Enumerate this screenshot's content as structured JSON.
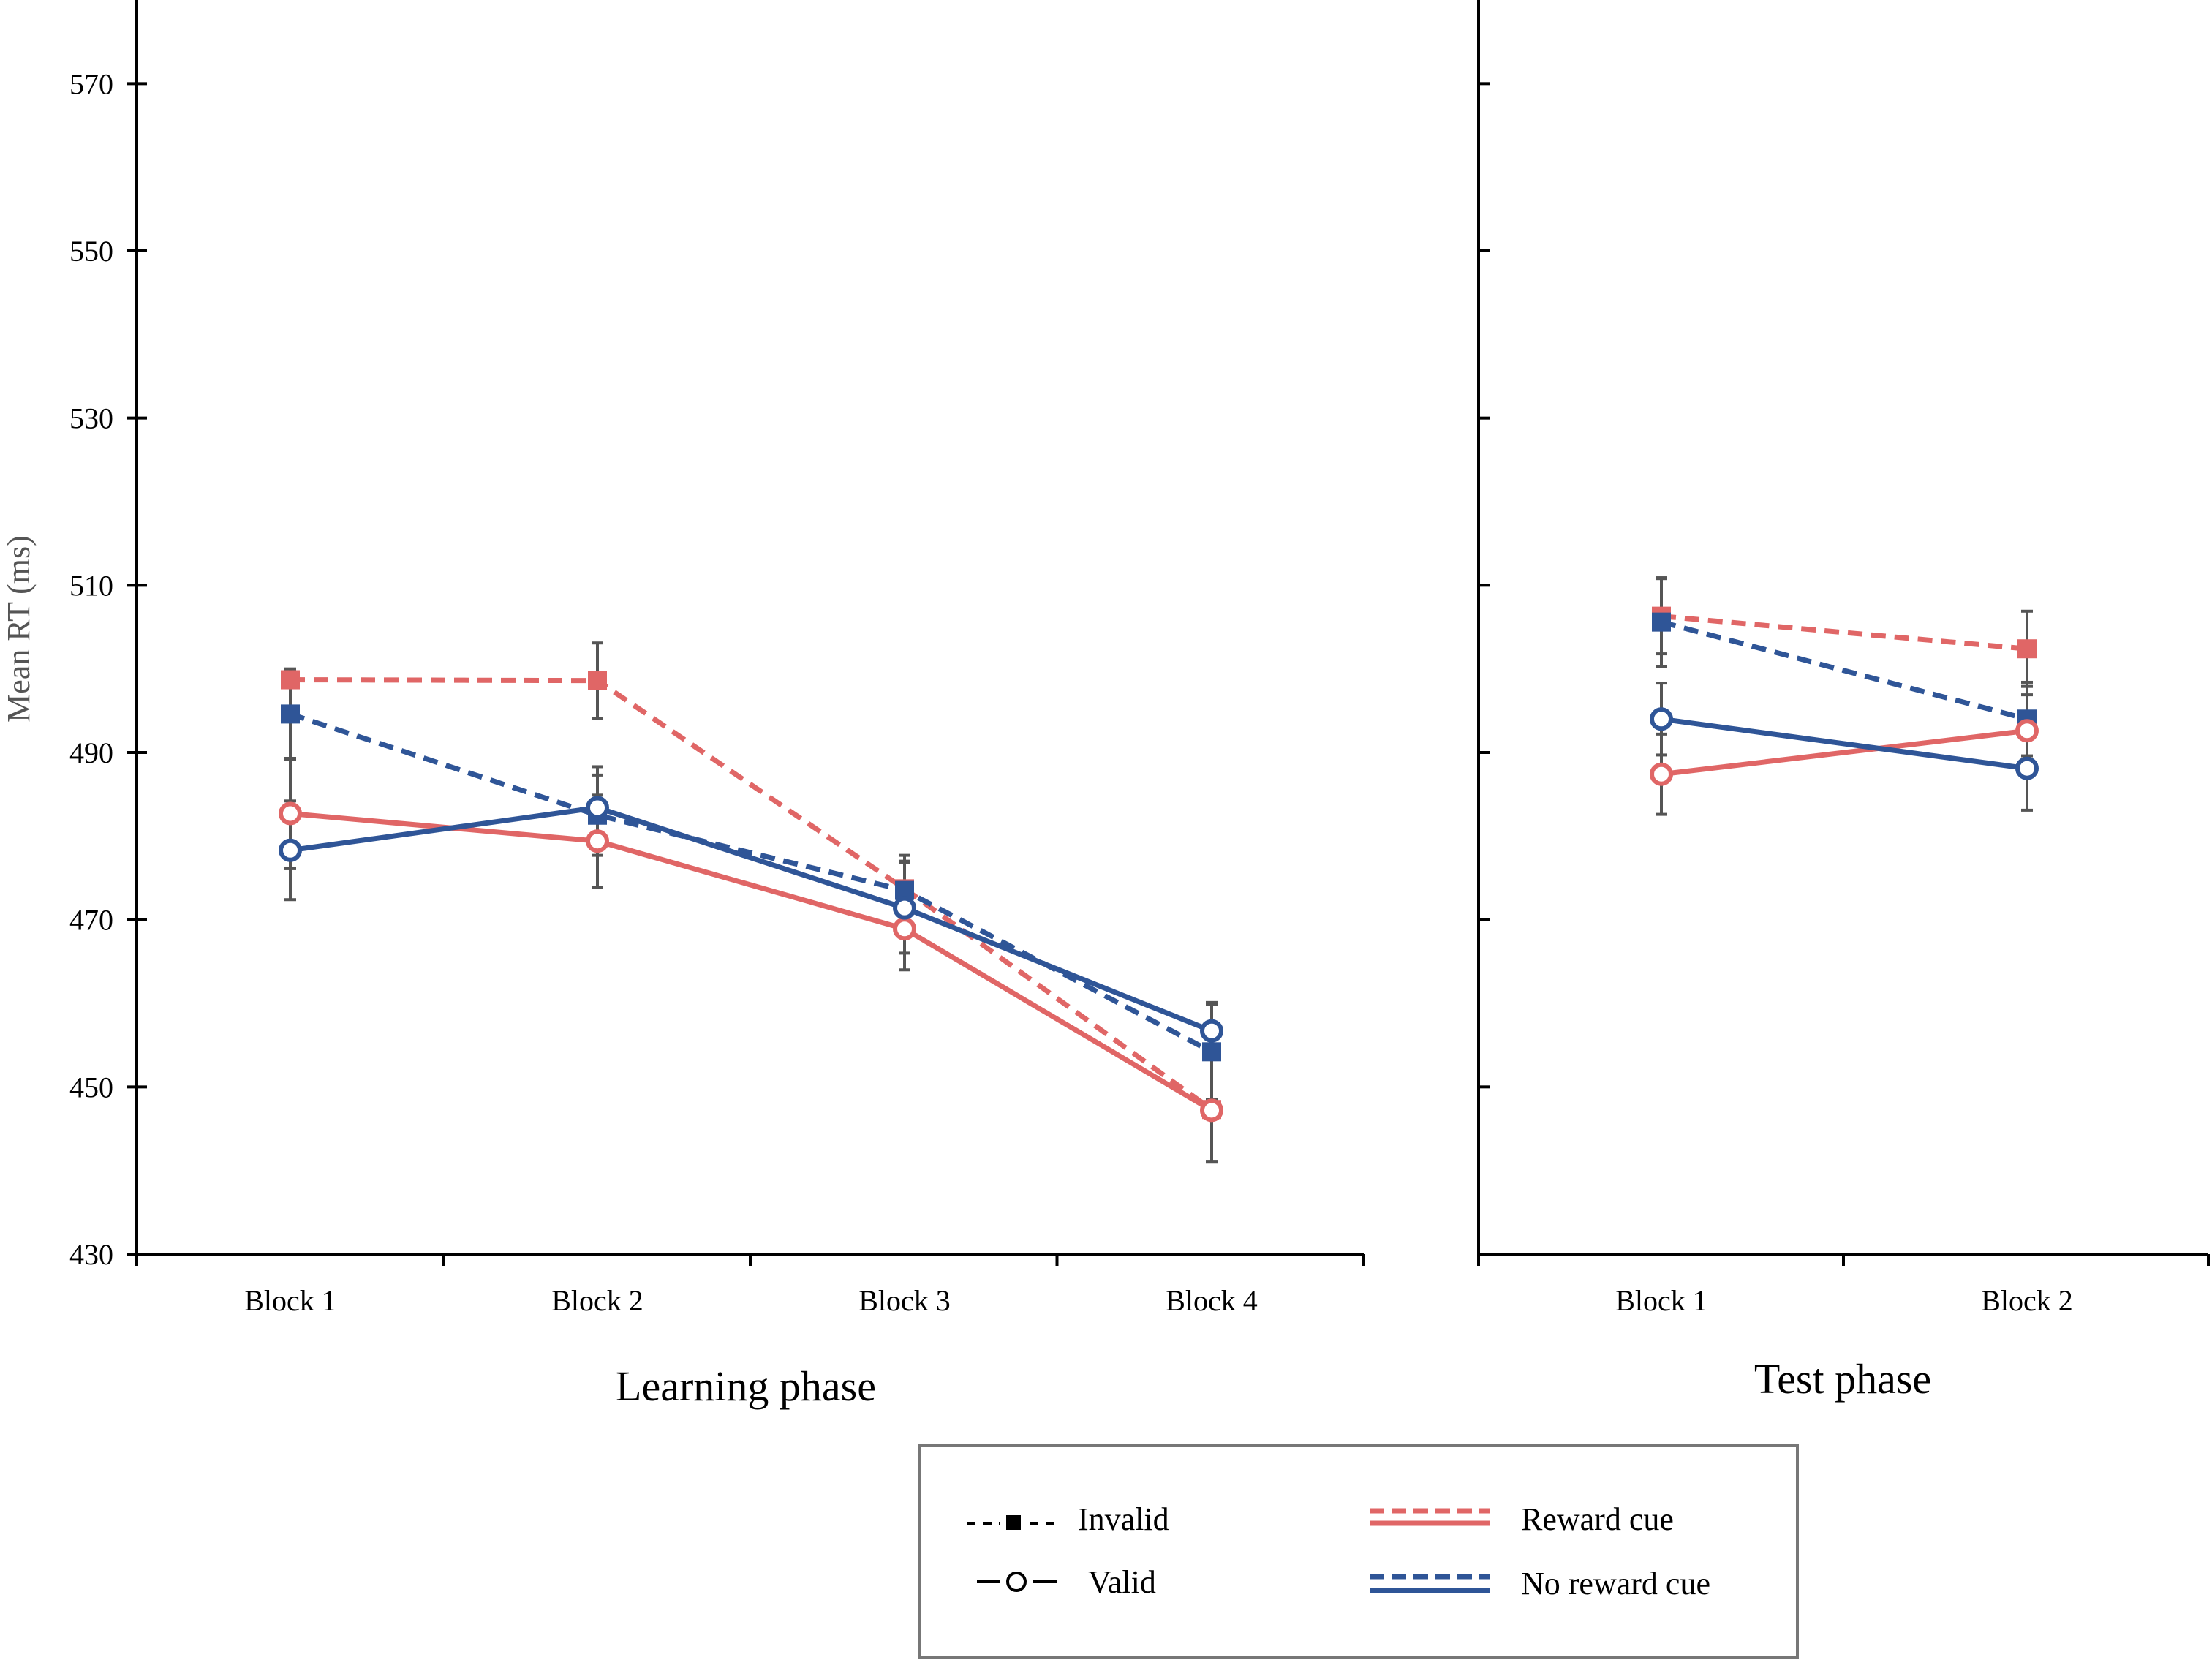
{
  "chart_data": {
    "type": "line",
    "ylabel": "Mean RT (ms)",
    "ylim": [
      430,
      580
    ],
    "yticks": [
      430,
      450,
      470,
      490,
      510,
      530,
      550,
      570
    ],
    "colors": {
      "reward": "#E06666",
      "no_reward": "#2F5597",
      "error": "#555555"
    },
    "panels": [
      {
        "phase": "Learning phase",
        "categories": [
          "Block 1",
          "Block 2",
          "Block 3",
          "Block 4"
        ],
        "series": [
          {
            "name": "Reward cue - Invalid",
            "cue": "reward",
            "validity": "invalid",
            "values": [
              498.7,
              498.6,
              473.7,
              447.3
            ],
            "errors": [
              null,
              4.5,
              4.0,
              6.3
            ]
          },
          {
            "name": "No reward cue - Invalid",
            "cue": "no_reward",
            "validity": "invalid",
            "values": [
              494.6,
              482.5,
              473.5,
              454.2
            ],
            "errors": [
              5.4,
              4.8,
              3.5,
              5.7
            ]
          },
          {
            "name": "Reward cue - Valid",
            "cue": "reward",
            "validity": "valid",
            "values": [
              482.7,
              479.4,
              468.9,
              447.2
            ],
            "errors": [
              6.6,
              5.5,
              4.9,
              6.1
            ]
          },
          {
            "name": "No reward cue - Valid",
            "cue": "no_reward",
            "validity": "valid",
            "values": [
              478.3,
              483.4,
              471.4,
              456.7
            ],
            "errors": [
              5.9,
              4.9,
              5.4,
              3.4
            ]
          }
        ]
      },
      {
        "phase": "Test phase",
        "categories": [
          "Block 1",
          "Block 2"
        ],
        "series": [
          {
            "name": "Reward cue - Invalid",
            "cue": "reward",
            "validity": "invalid",
            "values": [
              506.3,
              502.4
            ],
            "errors": [
              4.5,
              4.5
            ]
          },
          {
            "name": "No reward cue - Invalid",
            "cue": "no_reward",
            "validity": "invalid",
            "values": [
              505.6,
              494.0
            ],
            "errors": [
              5.3,
              4.4
            ]
          },
          {
            "name": "Reward cue - Valid",
            "cue": "reward",
            "validity": "valid",
            "values": [
              487.4,
              492.6
            ],
            "errors": [
              4.8,
              4.3
            ]
          },
          {
            "name": "No reward cue - Valid",
            "cue": "no_reward",
            "validity": "valid",
            "values": [
              494.0,
              488.1
            ],
            "errors": [
              4.3,
              5.0
            ]
          }
        ]
      }
    ],
    "legend": {
      "position": "bottom-center",
      "items": [
        {
          "key": "invalid",
          "label": "Invalid"
        },
        {
          "key": "valid",
          "label": "Valid"
        },
        {
          "key": "reward",
          "label": "Reward cue"
        },
        {
          "key": "no_reward",
          "label": "No reward cue"
        }
      ]
    }
  }
}
